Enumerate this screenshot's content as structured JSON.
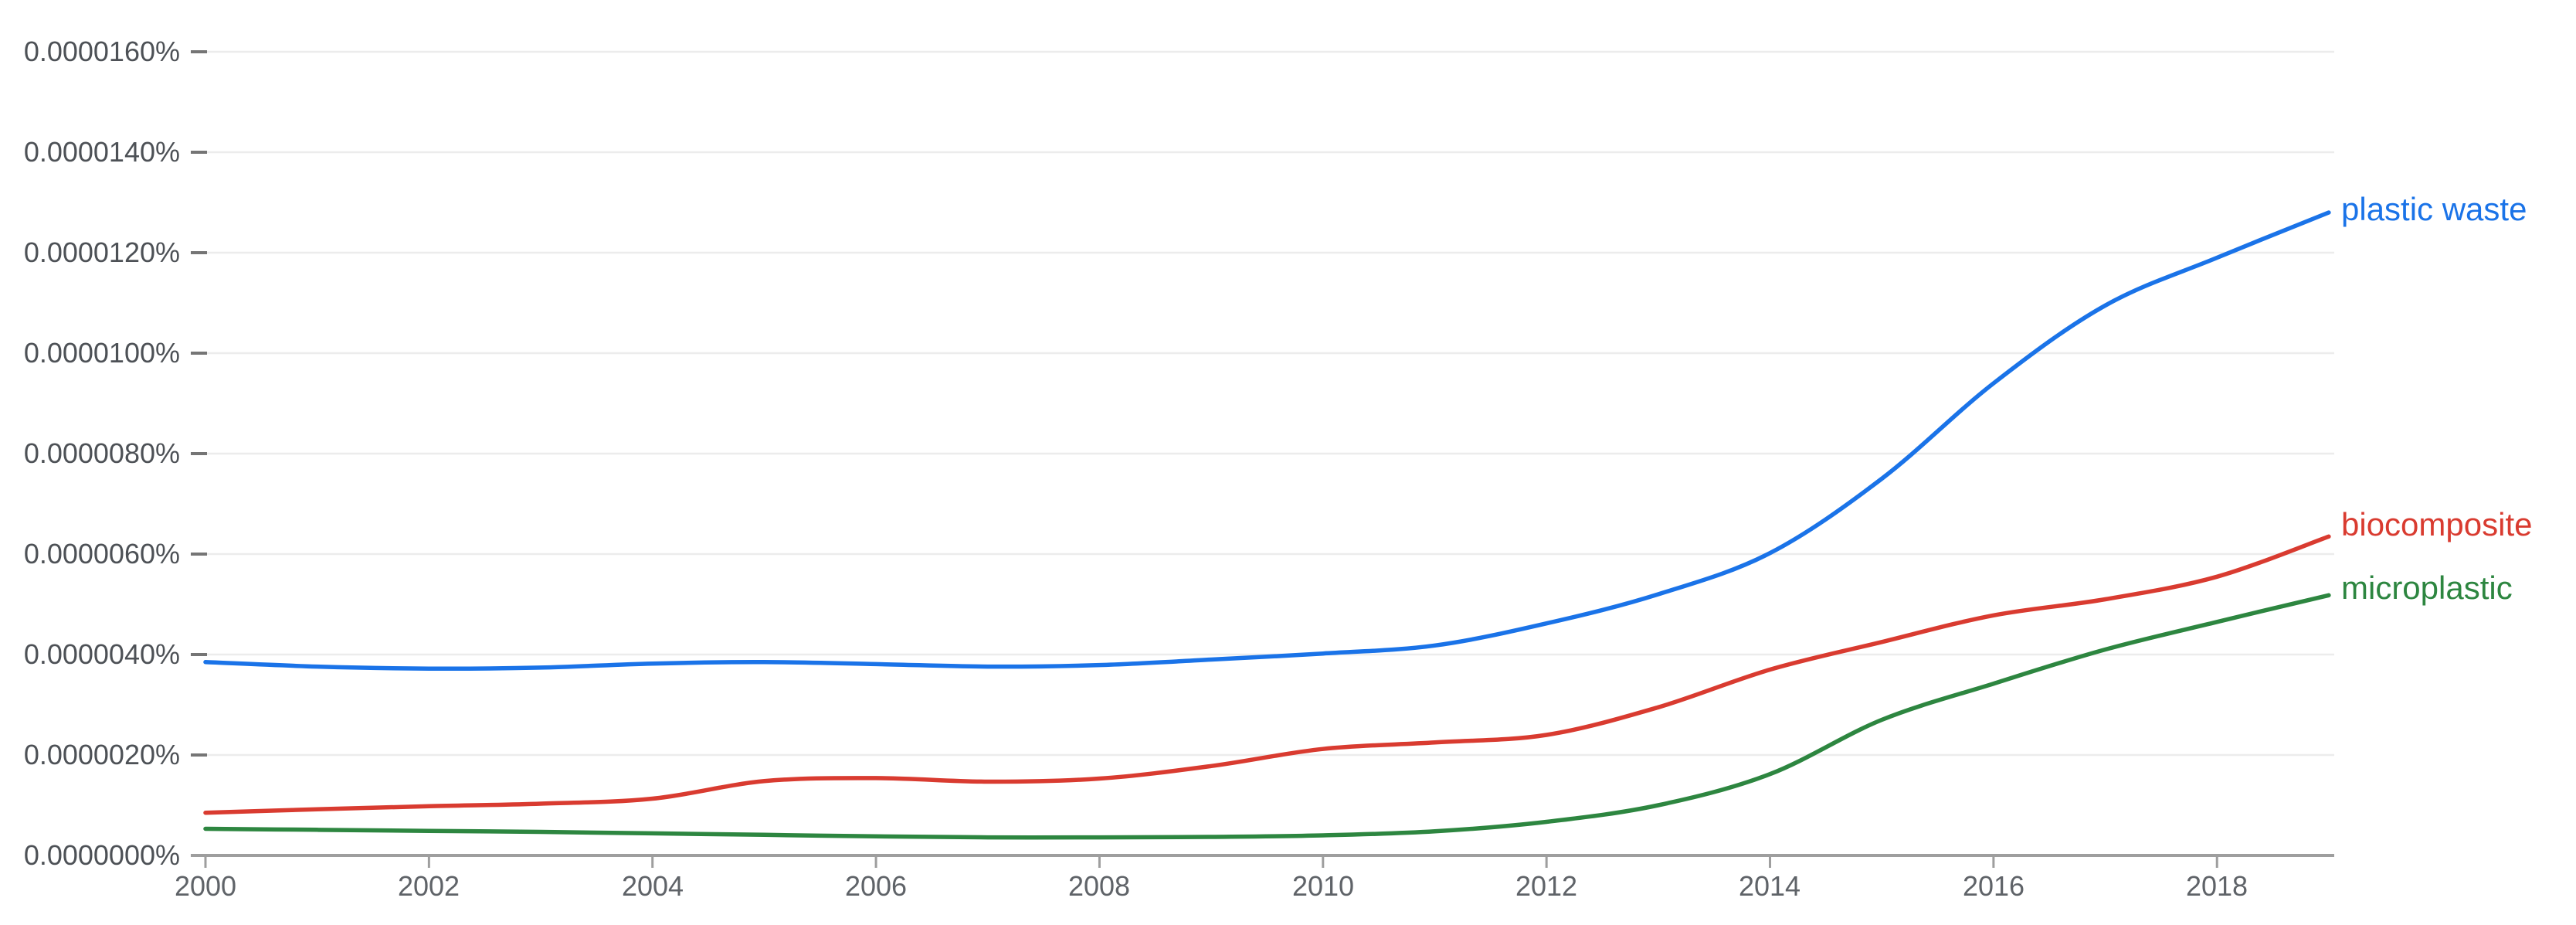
{
  "chart_data": {
    "type": "line",
    "title": "",
    "xlabel": "",
    "ylabel": "",
    "value_unit": "1e-6 percent (labels shown as 0.0000020% steps)",
    "grid": true,
    "legend_position": "end-of-line labels, right margin",
    "x": [
      2000,
      2001,
      2002,
      2003,
      2004,
      2005,
      2006,
      2007,
      2008,
      2009,
      2010,
      2011,
      2012,
      2013,
      2014,
      2015,
      2016,
      2017,
      2018,
      2019
    ],
    "xlim": [
      2000,
      2019
    ],
    "ylim_e6": [
      0,
      17
    ],
    "series": [
      {
        "name": "plastic waste",
        "color": "#1a73e8",
        "values_e6_percent": [
          3.85,
          3.76,
          3.72,
          3.74,
          3.82,
          3.85,
          3.81,
          3.76,
          3.79,
          3.9,
          4.02,
          4.18,
          4.62,
          5.2,
          6.02,
          7.5,
          9.4,
          10.95,
          11.9,
          12.8
        ]
      },
      {
        "name": "biocomposite",
        "color": "#d93b30",
        "values_e6_percent": [
          0.85,
          0.92,
          0.98,
          1.03,
          1.13,
          1.48,
          1.54,
          1.47,
          1.53,
          1.78,
          2.12,
          2.25,
          2.4,
          2.95,
          3.7,
          4.25,
          4.78,
          5.1,
          5.55,
          6.35
        ]
      },
      {
        "name": "microplastic",
        "color": "#2d8640",
        "values_e6_percent": [
          0.53,
          0.51,
          0.49,
          0.47,
          0.44,
          0.41,
          0.38,
          0.36,
          0.36,
          0.37,
          0.4,
          0.48,
          0.67,
          1.0,
          1.62,
          2.7,
          3.42,
          4.1,
          4.65,
          5.18
        ]
      }
    ],
    "y_axis": {
      "ticks_e6": [
        16,
        14,
        12,
        10,
        8,
        6,
        4,
        2,
        0
      ],
      "tick_labels": [
        "0.0000160%",
        "0.0000140%",
        "0.0000120%",
        "0.0000100%",
        "0.0000080%",
        "0.0000060%",
        "0.0000040%",
        "0.0000020%",
        "0.0000000%"
      ]
    },
    "x_axis": {
      "tick_years": [
        2000,
        2002,
        2004,
        2006,
        2008,
        2010,
        2012,
        2014,
        2016,
        2018
      ],
      "tick_labels": [
        "2000",
        "2002",
        "2004",
        "2006",
        "2008",
        "2010",
        "2012",
        "2014",
        "2016",
        "2018"
      ]
    },
    "colors": {
      "gridline": "#ececec",
      "axis": "#9e9e9e",
      "y_tick_dash": "#757575"
    }
  }
}
